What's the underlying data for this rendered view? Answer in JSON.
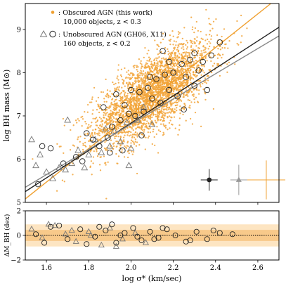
{
  "chart_data": [
    {
      "type": "scatter",
      "ylabel": "log BH mass (M⊙)",
      "xlim": [
        1.5,
        2.7
      ],
      "ylim": [
        5.0,
        9.6
      ],
      "x_ticks": [
        "1.6",
        "1.8",
        "2.0",
        "2.2",
        "2.4",
        "2.6"
      ],
      "y_ticks": [
        "5",
        "6",
        "7",
        "8",
        "9"
      ],
      "legend": [
        {
          "label": "Obscured AGN (this work)",
          "detail": "10,000 objects, z < 0.3",
          "marker": "dot",
          "color": "#f0a030"
        },
        {
          "label": "Unobscured AGN (GH06, X11)",
          "detail": "160 objects, z < 0.2",
          "marker": "triangle+circle",
          "color": "#555555"
        }
      ],
      "legend_prefix": ": ",
      "legend_placement": "top-left",
      "fit_lines": [
        {
          "x": [
            1.5,
            2.7
          ],
          "y": [
            5.08,
            9.75
          ],
          "color": "#f0a030"
        },
        {
          "x": [
            1.5,
            2.7
          ],
          "y": [
            5.25,
            9.05
          ],
          "color": "#222222"
        },
        {
          "x": [
            1.5,
            2.7
          ],
          "y": [
            5.35,
            8.85
          ],
          "color": "#888888"
        }
      ],
      "cloud": {
        "x_mean": 2.1,
        "x_sd": 0.14,
        "slope": 3.0,
        "scatter": 0.42
      },
      "unobscured_circles": [
        [
          1.56,
          5.42
        ],
        [
          1.58,
          6.3
        ],
        [
          1.62,
          6.25
        ],
        [
          1.68,
          5.9
        ],
        [
          1.74,
          6.05
        ],
        [
          1.77,
          5.95
        ],
        [
          1.79,
          6.6
        ],
        [
          1.82,
          6.45
        ],
        [
          1.85,
          6.3
        ],
        [
          1.87,
          7.2
        ],
        [
          1.89,
          6.5
        ],
        [
          1.91,
          6.75
        ],
        [
          1.93,
          7.5
        ],
        [
          1.95,
          6.9
        ],
        [
          1.97,
          7.25
        ],
        [
          1.99,
          7.05
        ],
        [
          2.0,
          7.6
        ],
        [
          2.02,
          7.0
        ],
        [
          2.04,
          7.55
        ],
        [
          2.06,
          7.1
        ],
        [
          2.08,
          7.65
        ],
        [
          2.1,
          7.4
        ],
        [
          2.12,
          7.85
        ],
        [
          2.14,
          7.3
        ],
        [
          2.16,
          7.95
        ],
        [
          2.18,
          7.6
        ],
        [
          2.2,
          8.0
        ],
        [
          2.22,
          7.45
        ],
        [
          2.24,
          8.2
        ],
        [
          2.26,
          7.9
        ],
        [
          2.28,
          8.3
        ],
        [
          2.3,
          7.7
        ],
        [
          2.32,
          8.05
        ],
        [
          2.34,
          8.25
        ],
        [
          2.36,
          7.6
        ],
        [
          2.38,
          8.4
        ],
        [
          2.42,
          8.7
        ],
        [
          2.15,
          8.5
        ],
        [
          2.05,
          6.55
        ],
        [
          1.9,
          6.15
        ],
        [
          2.25,
          7.15
        ],
        [
          2.09,
          7.9
        ],
        [
          1.96,
          6.2
        ],
        [
          2.18,
          8.25
        ],
        [
          2.3,
          8.45
        ]
      ],
      "unobscured_triangles": [
        [
          1.53,
          6.45
        ],
        [
          1.55,
          5.85
        ],
        [
          1.57,
          6.1
        ],
        [
          1.6,
          5.7
        ],
        [
          1.63,
          5.55
        ],
        [
          1.66,
          5.8
        ],
        [
          1.69,
          5.75
        ],
        [
          1.72,
          5.9
        ],
        [
          1.75,
          6.2
        ],
        [
          1.78,
          5.8
        ],
        [
          1.8,
          6.1
        ],
        [
          1.83,
          6.45
        ],
        [
          1.86,
          6.15
        ],
        [
          1.88,
          6.7
        ],
        [
          1.9,
          6.3
        ],
        [
          1.92,
          6.65
        ],
        [
          1.95,
          6.4
        ],
        [
          1.98,
          6.85
        ],
        [
          2.0,
          6.25
        ],
        [
          2.03,
          6.9
        ],
        [
          2.06,
          7.2
        ],
        [
          2.1,
          6.8
        ],
        [
          1.7,
          6.9
        ],
        [
          1.99,
          5.85
        ]
      ],
      "error_bars": [
        {
          "x": 2.37,
          "y": 5.52,
          "xerr": 0.04,
          "yerr": 0.25,
          "marker": "filled-circle",
          "color": "#222222"
        },
        {
          "x": 2.51,
          "y": 5.52,
          "xerr": 0.04,
          "yerr": 0.35,
          "marker": "filled-triangle",
          "color": "#999999"
        },
        {
          "x": 2.64,
          "y": 5.52,
          "xerr": 0.09,
          "yerr": 0.45,
          "marker": "none",
          "color": "#f0a030"
        }
      ]
    },
    {
      "type": "scatter",
      "xlabel": "log σ* (km/sec)",
      "ylabel": "ΔM_BH (dex)",
      "xlim": [
        1.5,
        2.7
      ],
      "ylim": [
        -2,
        2
      ],
      "x_ticks": [
        "1.6",
        "1.8",
        "2.0",
        "2.2",
        "2.4",
        "2.6"
      ],
      "y_ticks": [
        "2",
        "0",
        "−2"
      ],
      "zero_line": true,
      "bands": [
        {
          "half_width": 0.9,
          "color": "#fde5c2"
        },
        {
          "half_width": 0.45,
          "color": "#f8c98a"
        }
      ],
      "circles_x": [
        1.55,
        1.62,
        1.7,
        1.76,
        1.83,
        1.88,
        1.93,
        1.97,
        2.01,
        2.05,
        2.09,
        2.13,
        2.17,
        2.21,
        2.26,
        2.31,
        2.36,
        2.42,
        2.48,
        1.66,
        1.79,
        1.91,
        2.03,
        2.15,
        2.28,
        2.39,
        1.59,
        1.85,
        1.95,
        2.11
      ],
      "triangles_x": [
        1.53,
        1.58,
        1.64,
        1.69,
        1.74,
        1.8,
        1.86,
        1.9,
        1.96,
        2.02,
        2.07,
        1.72,
        1.81,
        1.93,
        1.61
      ],
      "residuals_c": [
        0.1,
        0.7,
        -0.3,
        0.5,
        -0.1,
        0.4,
        -0.6,
        0.2,
        0.6,
        -0.4,
        0.3,
        -0.2,
        0.5,
        0.0,
        -0.5,
        0.3,
        -0.3,
        0.2,
        0.1,
        0.8,
        -0.7,
        0.9,
        -0.1,
        0.6,
        -0.4,
        0.4,
        -0.6,
        0.7,
        0.0,
        -0.3
      ],
      "residuals_t": [
        0.5,
        -0.2,
        0.8,
        0.1,
        -0.5,
        0.3,
        -0.8,
        0.6,
        -0.3,
        0.2,
        -0.6,
        0.4,
        0.0,
        -0.9,
        0.9
      ]
    }
  ]
}
